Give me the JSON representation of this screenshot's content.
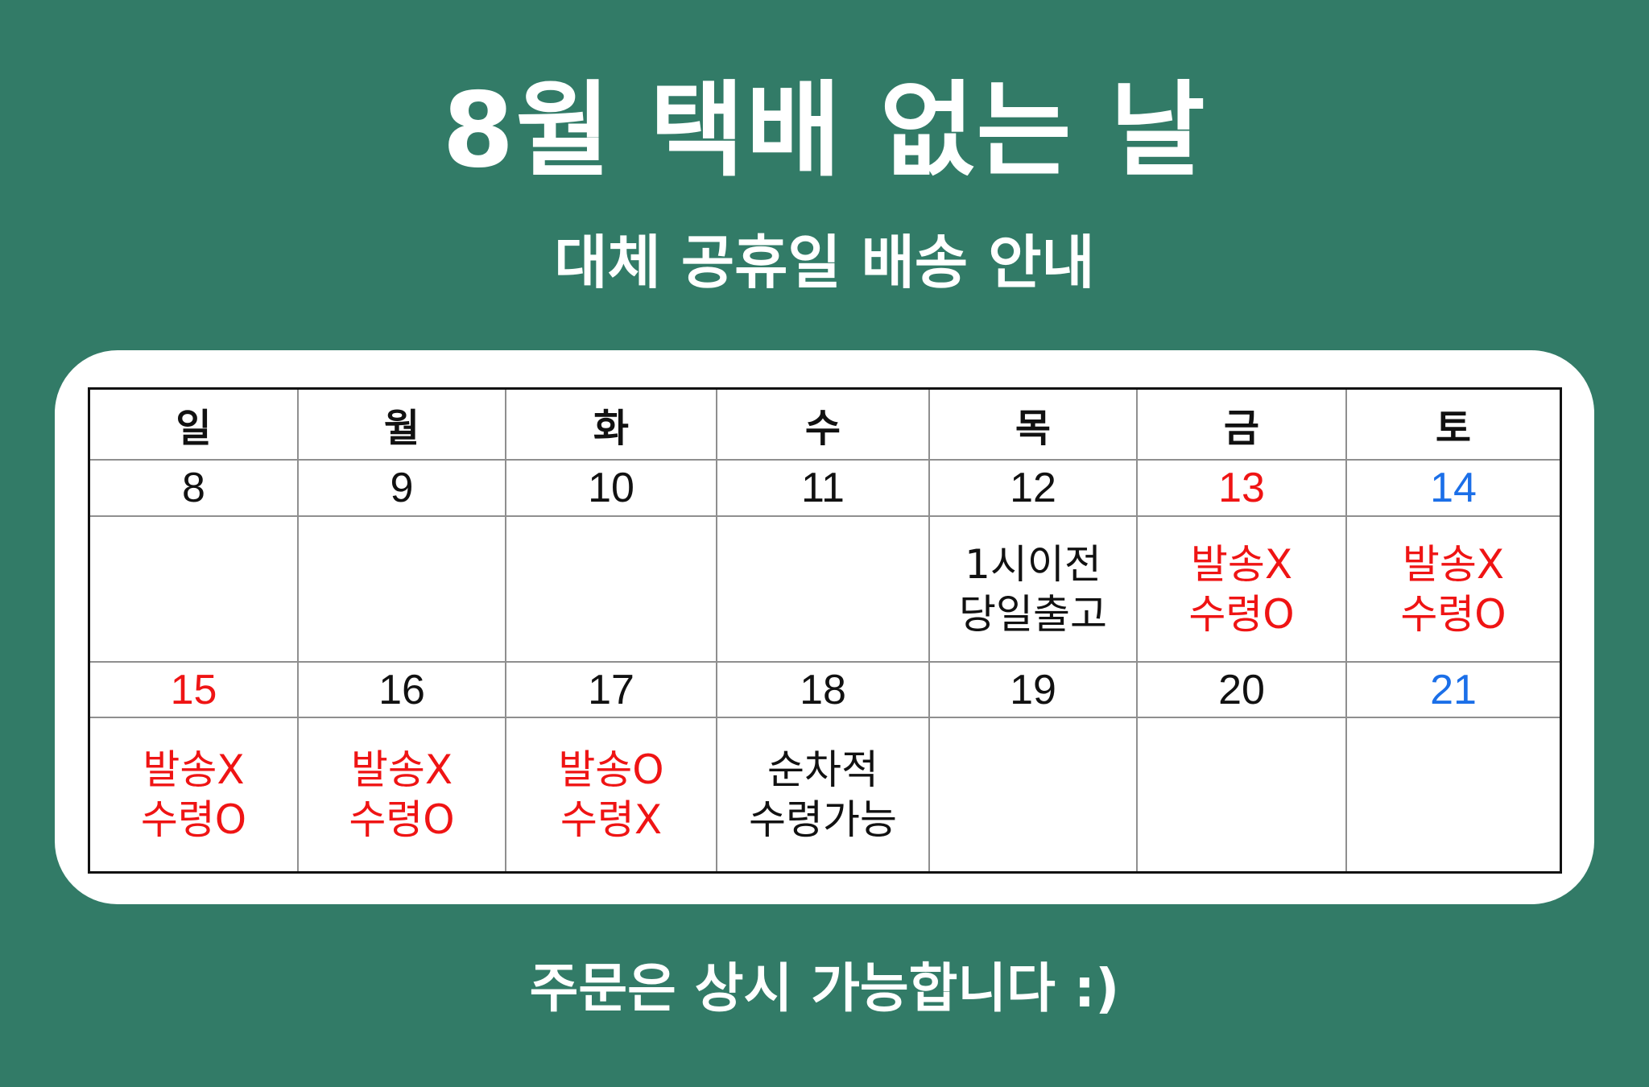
{
  "title": "8월 택배 없는 날",
  "subtitle": "대체 공휴일 배송 안내",
  "colors": {
    "background": "#327b67",
    "card": "#ffffff",
    "text": "#111111",
    "red": "#ef1414",
    "blue": "#1b6fe8"
  },
  "calendar": {
    "weekdays": [
      "일",
      "월",
      "화",
      "수",
      "목",
      "금",
      "토"
    ],
    "rows": [
      {
        "dates": [
          {
            "text": "8",
            "color": "dark"
          },
          {
            "text": "9",
            "color": "dark"
          },
          {
            "text": "10",
            "color": "dark"
          },
          {
            "text": "11",
            "color": "dark"
          },
          {
            "text": "12",
            "color": "dark"
          },
          {
            "text": "13",
            "color": "red"
          },
          {
            "text": "14",
            "color": "blue"
          }
        ],
        "notes": [
          {
            "line1": "",
            "line2": "",
            "color": "dark"
          },
          {
            "line1": "",
            "line2": "",
            "color": "dark"
          },
          {
            "line1": "",
            "line2": "",
            "color": "dark"
          },
          {
            "line1": "",
            "line2": "",
            "color": "dark"
          },
          {
            "line1": "1시이전",
            "line2": "당일출고",
            "color": "dark"
          },
          {
            "line1": "발송X",
            "line2": "수령O",
            "color": "red"
          },
          {
            "line1": "발송X",
            "line2": "수령O",
            "color": "red"
          }
        ]
      },
      {
        "dates": [
          {
            "text": "15",
            "color": "red"
          },
          {
            "text": "16",
            "color": "dark"
          },
          {
            "text": "17",
            "color": "dark"
          },
          {
            "text": "18",
            "color": "dark"
          },
          {
            "text": "19",
            "color": "dark"
          },
          {
            "text": "20",
            "color": "dark"
          },
          {
            "text": "21",
            "color": "blue"
          }
        ],
        "notes": [
          {
            "line1": "발송X",
            "line2": "수령O",
            "color": "red"
          },
          {
            "line1": "발송X",
            "line2": "수령O",
            "color": "red"
          },
          {
            "line1": "발송O",
            "line2": "수령X",
            "color": "red"
          },
          {
            "line1": "순차적",
            "line2": "수령가능",
            "color": "dark"
          },
          {
            "line1": "",
            "line2": "",
            "color": "dark"
          },
          {
            "line1": "",
            "line2": "",
            "color": "dark"
          },
          {
            "line1": "",
            "line2": "",
            "color": "dark"
          }
        ]
      }
    ]
  },
  "footer": "주문은 상시 가능합니다 :)"
}
